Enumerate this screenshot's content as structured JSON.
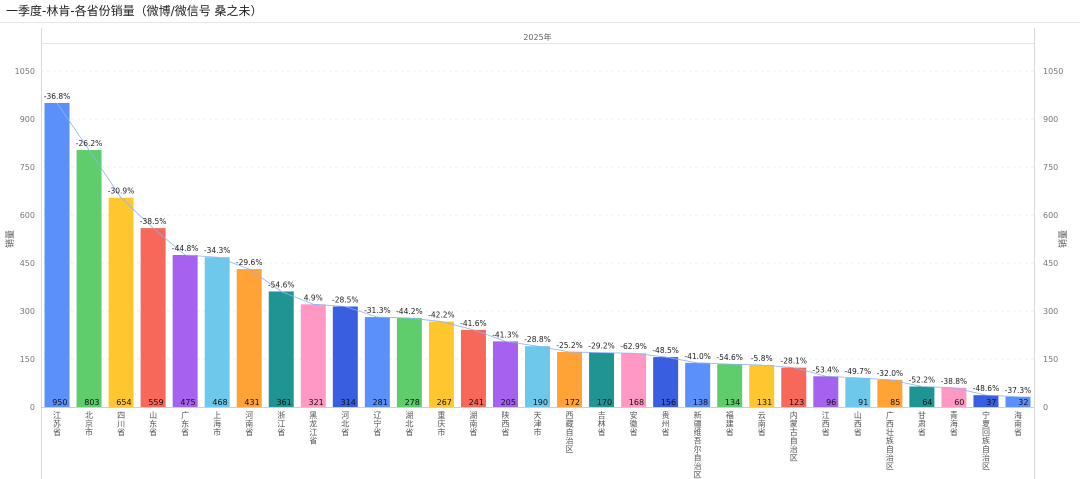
{
  "chart_data": {
    "type": "bar",
    "title": "一季度-林肯-各省份销量（微博/微信号 桑之未）",
    "column_header": "2025年",
    "ylabel": "销量",
    "ylim": [
      0,
      1050
    ],
    "yticks": [
      0,
      150,
      300,
      450,
      600,
      750,
      900,
      1050
    ],
    "grid": true,
    "colors": [
      "#5B8FF9",
      "#5FCD6B",
      "#FFC72E",
      "#F7675A",
      "#A462EE",
      "#6DC8EC",
      "#FFA336",
      "#1E9493",
      "#FF99C3",
      "#3A5EE0"
    ],
    "categories": [
      "江苏省",
      "北京市",
      "四川省",
      "山东省",
      "广东省",
      "上海市",
      "河南省",
      "浙江省",
      "黑龙江省",
      "河北省",
      "辽宁省",
      "湖北省",
      "重庆市",
      "湖南省",
      "陕西省",
      "天津市",
      "西藏自治区",
      "吉林省",
      "安徽省",
      "贵州省",
      "新疆维吾尔自治区",
      "福建省",
      "云南省",
      "内蒙古自治区",
      "江西省",
      "山西省",
      "广西壮族自治区",
      "甘肃省",
      "青海省",
      "宁夏回族自治区",
      "海南省"
    ],
    "values": [
      950,
      803,
      654,
      559,
      475,
      468,
      431,
      361,
      321,
      314,
      281,
      278,
      267,
      241,
      205,
      190,
      172,
      170,
      168,
      156,
      138,
      134,
      131,
      123,
      96,
      91,
      85,
      64,
      60,
      37,
      32
    ],
    "yoy_labels": [
      "-36.8%",
      "-26.2%",
      "-30.9%",
      "-38.5%",
      "-44.8%",
      "-34.3%",
      "-29.6%",
      "-54.6%",
      "4.9%",
      "-28.5%",
      "-31.3%",
      "-44.2%",
      "-42.2%",
      "-41.6%",
      "-41.3%",
      "-28.8%",
      "-25.2%",
      "-29.2%",
      "-62.9%",
      "-48.5%",
      "-41.0%",
      "-54.6%",
      "-5.8%",
      "-28.1%",
      "-53.4%",
      "-49.7%",
      "-32.0%",
      "-52.2%",
      "-38.8%",
      "-48.6%",
      "-37.3%"
    ]
  }
}
